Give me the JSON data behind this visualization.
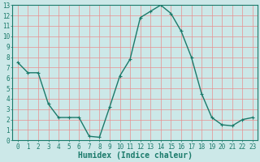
{
  "x": [
    0,
    1,
    2,
    3,
    4,
    5,
    6,
    7,
    8,
    9,
    10,
    11,
    12,
    13,
    14,
    15,
    16,
    17,
    18,
    19,
    20,
    21,
    22,
    23
  ],
  "y": [
    7.5,
    6.5,
    6.5,
    3.5,
    2.2,
    2.2,
    2.2,
    0.4,
    0.3,
    3.2,
    6.2,
    7.8,
    11.8,
    12.4,
    13.0,
    12.2,
    10.5,
    8.0,
    4.5,
    2.2,
    1.5,
    1.4,
    2.0,
    2.2
  ],
  "line_color": "#1a7a6a",
  "marker": "+",
  "marker_size": 3,
  "marker_color": "#1a7a6a",
  "bg_color": "#cce8e8",
  "grid_color": "#e89090",
  "xlabel": "Humidex (Indice chaleur)",
  "xlabel_fontsize": 7,
  "xlim": [
    -0.5,
    23.5
  ],
  "ylim": [
    0,
    13
  ],
  "yticks": [
    0,
    1,
    2,
    3,
    4,
    5,
    6,
    7,
    8,
    9,
    10,
    11,
    12,
    13
  ],
  "xticks": [
    0,
    1,
    2,
    3,
    4,
    5,
    6,
    7,
    8,
    9,
    10,
    11,
    12,
    13,
    14,
    15,
    16,
    17,
    18,
    19,
    20,
    21,
    22,
    23
  ],
  "tick_fontsize": 5.5,
  "axis_color": "#1a7a6a",
  "line_width": 1.0
}
